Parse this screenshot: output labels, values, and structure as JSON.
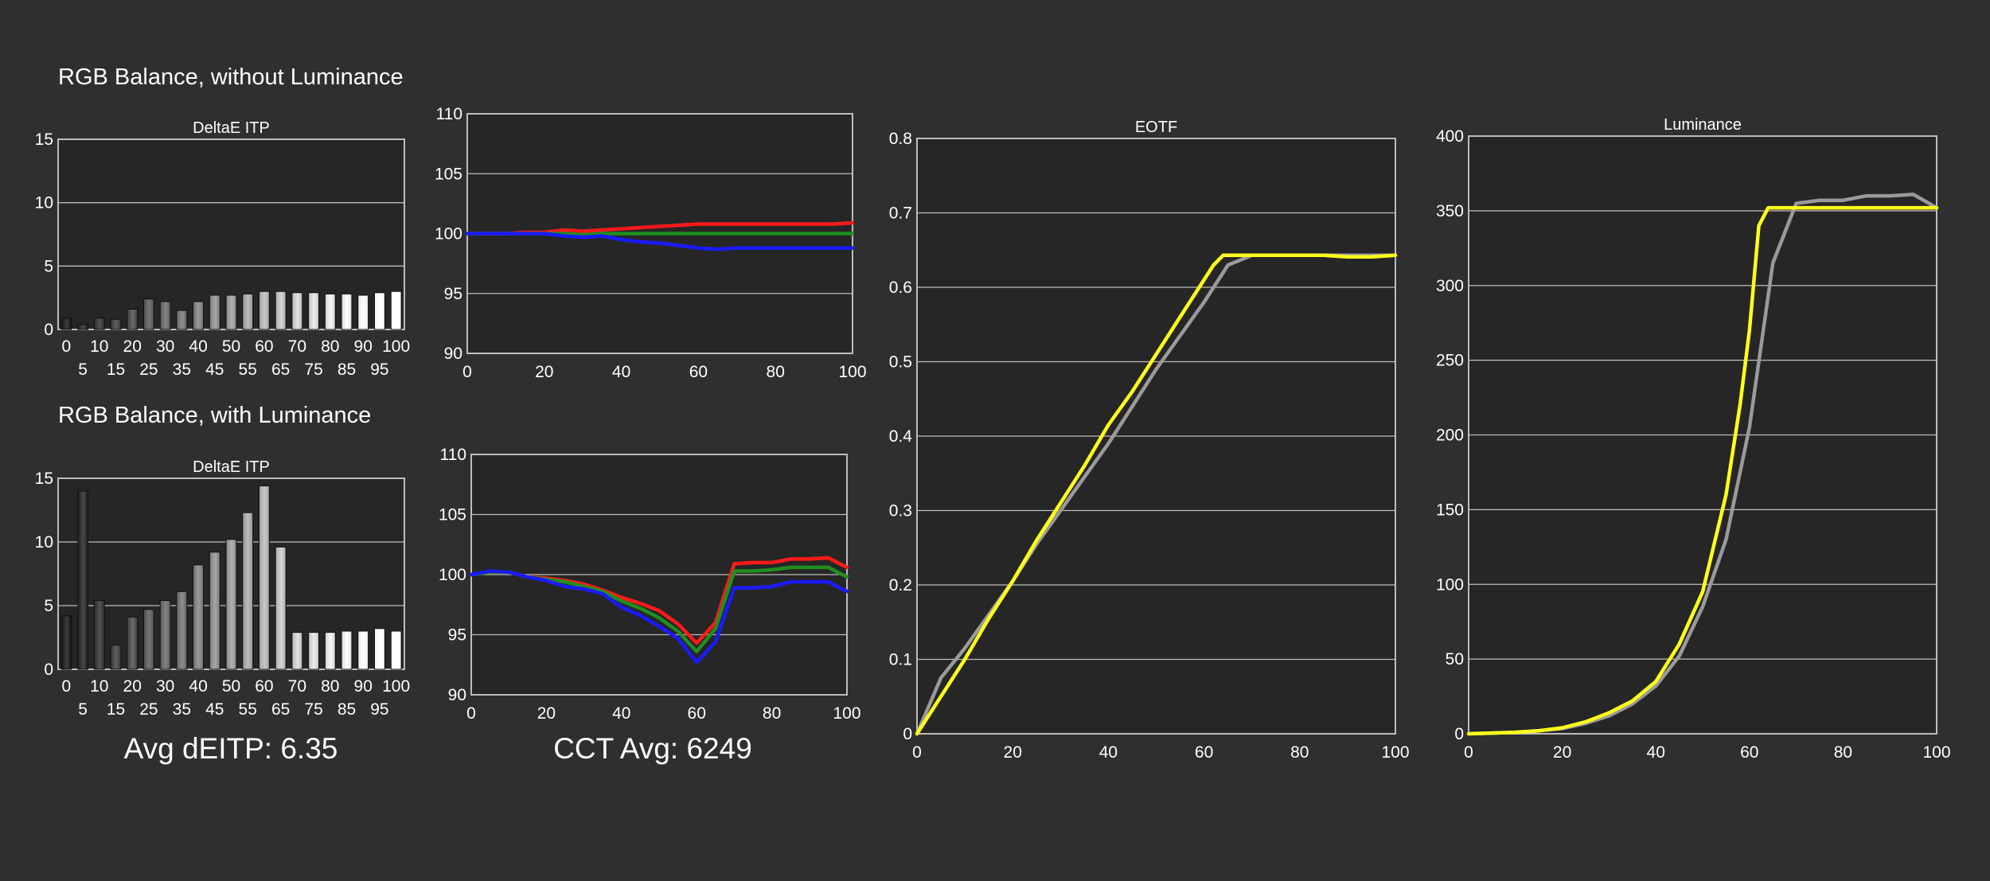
{
  "colors": {
    "background": "#2f2f2f",
    "plot_bg": "#262626",
    "grid": "#bdbdbd",
    "text": "#ffffff",
    "red": "#ff1a1a",
    "green": "#1f8f1f",
    "blue": "#1a1aff",
    "yellow": "#ffff1a",
    "gray": "#9a9a9a"
  },
  "sections": {
    "without_luminance": "RGB Balance, without Luminance",
    "with_luminance": "RGB Balance, with Luminance"
  },
  "stats": {
    "avg_deitp": "Avg dEITP: 6.35",
    "cct_avg": "CCT Avg: 6249"
  },
  "chart_data": [
    {
      "id": "deltae_without",
      "type": "bar",
      "title": "DeltaE ITP",
      "ylim": [
        0,
        15
      ],
      "yticks": [
        0,
        5,
        10,
        15
      ],
      "categories": [
        0,
        5,
        10,
        15,
        20,
        25,
        30,
        35,
        40,
        45,
        50,
        55,
        60,
        65,
        70,
        75,
        80,
        85,
        90,
        95,
        100
      ],
      "tick_labels_top": [
        "0",
        "10",
        "20",
        "30",
        "40",
        "50",
        "60",
        "70",
        "80",
        "90",
        "100"
      ],
      "tick_labels_bottom": [
        "5",
        "15",
        "25",
        "35",
        "45",
        "55",
        "65",
        "75",
        "85",
        "95"
      ],
      "values": [
        0.9,
        0.4,
        0.9,
        0.8,
        1.6,
        2.4,
        2.2,
        1.5,
        2.2,
        2.7,
        2.7,
        2.8,
        3.0,
        3.0,
        2.9,
        2.9,
        2.8,
        2.8,
        2.7,
        2.9,
        3.0
      ]
    },
    {
      "id": "rgb_without",
      "type": "line",
      "title": "",
      "xlim": [
        0,
        100
      ],
      "ylim": [
        90,
        110
      ],
      "xticks": [
        0,
        20,
        40,
        60,
        80,
        100
      ],
      "yticks": [
        90,
        95,
        100,
        105,
        110
      ],
      "x": [
        0,
        5,
        10,
        15,
        20,
        25,
        30,
        35,
        40,
        45,
        50,
        55,
        60,
        65,
        70,
        75,
        80,
        85,
        90,
        95,
        100
      ],
      "series": [
        {
          "color": "red",
          "values": [
            100.0,
            100.0,
            100.0,
            100.1,
            100.1,
            100.3,
            100.2,
            100.3,
            100.4,
            100.5,
            100.6,
            100.7,
            100.8,
            100.8,
            100.8,
            100.8,
            100.8,
            100.8,
            100.8,
            100.8,
            100.9
          ]
        },
        {
          "color": "green",
          "values": [
            100.0,
            100.0,
            100.0,
            100.0,
            100.0,
            100.0,
            99.9,
            100.0,
            100.0,
            100.0,
            100.0,
            100.0,
            100.0,
            100.0,
            100.0,
            100.0,
            100.0,
            100.0,
            100.0,
            100.0,
            100.0
          ]
        },
        {
          "color": "blue",
          "values": [
            100.0,
            100.0,
            100.0,
            100.0,
            100.0,
            99.8,
            99.7,
            99.8,
            99.5,
            99.3,
            99.2,
            99.0,
            98.8,
            98.7,
            98.8,
            98.8,
            98.8,
            98.8,
            98.8,
            98.8,
            98.8
          ]
        }
      ]
    },
    {
      "id": "deltae_with",
      "type": "bar",
      "title": "DeltaE ITP",
      "ylim": [
        0,
        15
      ],
      "yticks": [
        0,
        5,
        10,
        15
      ],
      "categories": [
        0,
        5,
        10,
        15,
        20,
        25,
        30,
        35,
        40,
        45,
        50,
        55,
        60,
        65,
        70,
        75,
        80,
        85,
        90,
        95,
        100
      ],
      "tick_labels_top": [
        "0",
        "10",
        "20",
        "30",
        "40",
        "50",
        "60",
        "70",
        "80",
        "90",
        "100"
      ],
      "tick_labels_bottom": [
        "5",
        "15",
        "25",
        "35",
        "45",
        "55",
        "65",
        "75",
        "85",
        "95"
      ],
      "values": [
        4.2,
        14.0,
        5.4,
        1.9,
        4.1,
        4.7,
        5.4,
        6.1,
        8.2,
        9.2,
        10.2,
        12.3,
        14.4,
        9.6,
        2.9,
        2.9,
        2.9,
        3.0,
        3.0,
        3.2,
        3.0
      ]
    },
    {
      "id": "rgb_with",
      "type": "line",
      "title": "",
      "xlim": [
        0,
        100
      ],
      "ylim": [
        90,
        110
      ],
      "xticks": [
        0,
        20,
        40,
        60,
        80,
        100
      ],
      "yticks": [
        90,
        95,
        100,
        105,
        110
      ],
      "x": [
        0,
        5,
        10,
        15,
        20,
        25,
        30,
        35,
        40,
        45,
        50,
        55,
        60,
        65,
        70,
        75,
        80,
        85,
        90,
        95,
        100
      ],
      "series": [
        {
          "color": "red",
          "values": [
            100.0,
            100.2,
            100.2,
            99.8,
            99.7,
            99.5,
            99.2,
            98.7,
            98.1,
            97.6,
            97.0,
            95.9,
            94.3,
            96.0,
            100.9,
            101.0,
            101.0,
            101.3,
            101.3,
            101.4,
            100.6
          ]
        },
        {
          "color": "green",
          "values": [
            100.0,
            100.2,
            100.2,
            99.8,
            99.6,
            99.4,
            99.0,
            98.6,
            97.8,
            97.2,
            96.4,
            95.3,
            93.6,
            95.5,
            100.3,
            100.3,
            100.4,
            100.6,
            100.6,
            100.6,
            99.8
          ]
        },
        {
          "color": "blue",
          "values": [
            100.0,
            100.3,
            100.2,
            99.8,
            99.5,
            99.0,
            98.8,
            98.4,
            97.3,
            96.6,
            95.7,
            94.7,
            92.7,
            94.4,
            98.9,
            98.9,
            99.0,
            99.4,
            99.4,
            99.4,
            98.6
          ]
        }
      ]
    },
    {
      "id": "eotf",
      "type": "line",
      "title": "EOTF",
      "xlim": [
        0,
        100
      ],
      "ylim": [
        0,
        0.8
      ],
      "xticks": [
        0,
        20,
        40,
        60,
        80,
        100
      ],
      "yticks": [
        0,
        0.1,
        0.2,
        0.3,
        0.4,
        0.5,
        0.6,
        0.7,
        0.8
      ],
      "ytick_labels": [
        "0",
        "0.1",
        "0.2",
        "0.3",
        "0.4",
        "0.5",
        "0.6",
        "0.7",
        "0.8"
      ],
      "series": [
        {
          "color": "gray",
          "x": [
            0,
            5,
            10,
            15,
            20,
            25,
            30,
            35,
            40,
            45,
            50,
            55,
            60,
            65,
            70,
            75,
            80,
            85,
            90,
            95,
            100
          ],
          "values": [
            0,
            0.075,
            0.115,
            0.16,
            0.205,
            0.255,
            0.3,
            0.345,
            0.39,
            0.44,
            0.49,
            0.535,
            0.58,
            0.63,
            0.643,
            0.643,
            0.643,
            0.643,
            0.643,
            0.643,
            0.643
          ]
        },
        {
          "color": "yellow",
          "x": [
            0,
            2,
            5,
            10,
            15,
            20,
            25,
            30,
            35,
            40,
            45,
            50,
            55,
            60,
            62,
            64,
            65,
            70,
            75,
            80,
            85,
            90,
            95,
            100
          ],
          "values": [
            0,
            0.02,
            0.05,
            0.1,
            0.155,
            0.205,
            0.26,
            0.31,
            0.36,
            0.415,
            0.46,
            0.51,
            0.56,
            0.61,
            0.63,
            0.643,
            0.643,
            0.643,
            0.643,
            0.643,
            0.643,
            0.641,
            0.641,
            0.643
          ]
        }
      ]
    },
    {
      "id": "luminance",
      "type": "line",
      "title": "Luminance",
      "xlim": [
        0,
        100
      ],
      "ylim": [
        0,
        400
      ],
      "xticks": [
        0,
        20,
        40,
        60,
        80,
        100
      ],
      "yticks": [
        0,
        50,
        100,
        150,
        200,
        250,
        300,
        350,
        400
      ],
      "series": [
        {
          "color": "gray",
          "x": [
            0,
            5,
            10,
            15,
            20,
            25,
            30,
            35,
            40,
            45,
            50,
            55,
            60,
            65,
            70,
            75,
            80,
            85,
            90,
            95,
            100
          ],
          "values": [
            0,
            0.5,
            1,
            2,
            3.5,
            7,
            12,
            20,
            32,
            52,
            85,
            130,
            205,
            315,
            355,
            357,
            357,
            360,
            360,
            361,
            352
          ]
        },
        {
          "color": "yellow",
          "x": [
            0,
            5,
            10,
            15,
            20,
            25,
            30,
            35,
            40,
            45,
            50,
            55,
            58,
            60,
            62,
            64,
            65,
            70,
            75,
            80,
            85,
            90,
            95,
            100
          ],
          "values": [
            0,
            0.5,
            1,
            2,
            4,
            8,
            14,
            22,
            35,
            60,
            95,
            160,
            220,
            270,
            340,
            352,
            352,
            352,
            352,
            352,
            352,
            352,
            352,
            352
          ]
        }
      ]
    }
  ]
}
